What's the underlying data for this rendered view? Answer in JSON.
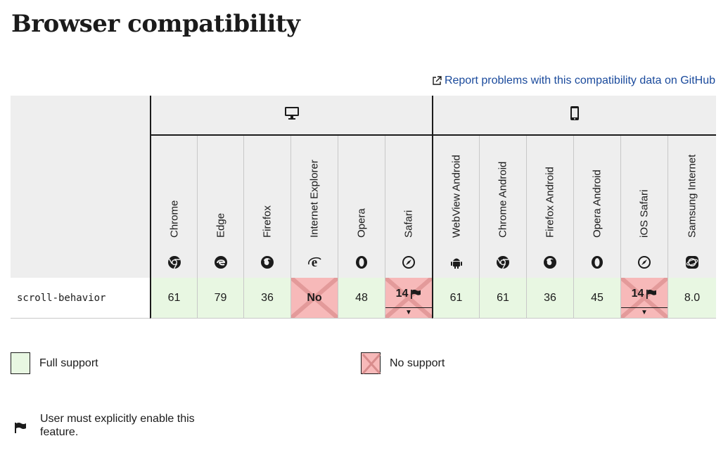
{
  "page": {
    "title": "Browser compatibility",
    "report_link": "Report problems with this compatibility data on GitHub"
  },
  "platforms": {
    "desktop_icon": "desktop-icon",
    "mobile_icon": "mobile-icon"
  },
  "browsers": [
    {
      "name": "Chrome",
      "icon": "chrome-icon"
    },
    {
      "name": "Edge",
      "icon": "edge-icon"
    },
    {
      "name": "Firefox",
      "icon": "firefox-icon"
    },
    {
      "name": "Internet Explorer",
      "icon": "internet-explorer-icon"
    },
    {
      "name": "Opera",
      "icon": "opera-icon"
    },
    {
      "name": "Safari",
      "icon": "safari-icon"
    },
    {
      "name": "WebView Android",
      "icon": "android-icon"
    },
    {
      "name": "Chrome Android",
      "icon": "chrome-icon"
    },
    {
      "name": "Firefox Android",
      "icon": "firefox-icon"
    },
    {
      "name": "Opera Android",
      "icon": "opera-icon"
    },
    {
      "name": "iOS Safari",
      "icon": "safari-icon"
    },
    {
      "name": "Samsung Internet",
      "icon": "samsung-internet-icon"
    }
  ],
  "feature": {
    "name": "scroll-behavior",
    "support": [
      {
        "value": "61",
        "status": "yes"
      },
      {
        "value": "79",
        "status": "yes"
      },
      {
        "value": "36",
        "status": "yes"
      },
      {
        "value": "No",
        "status": "no"
      },
      {
        "value": "48",
        "status": "yes"
      },
      {
        "value": "14",
        "status": "no",
        "flag": true
      },
      {
        "value": "61",
        "status": "yes"
      },
      {
        "value": "61",
        "status": "yes"
      },
      {
        "value": "36",
        "status": "yes"
      },
      {
        "value": "45",
        "status": "yes"
      },
      {
        "value": "14",
        "status": "no",
        "flag": true
      },
      {
        "value": "8.0",
        "status": "yes"
      }
    ]
  },
  "legend": {
    "full_support": "Full support",
    "no_support": "No support",
    "flag_note": "User must explicitly enable this feature."
  },
  "colors": {
    "full_support": "#e8f7e2",
    "no_support": "#f7b9b9",
    "header_bg": "#eeeeee",
    "link": "#1a4a9c"
  }
}
